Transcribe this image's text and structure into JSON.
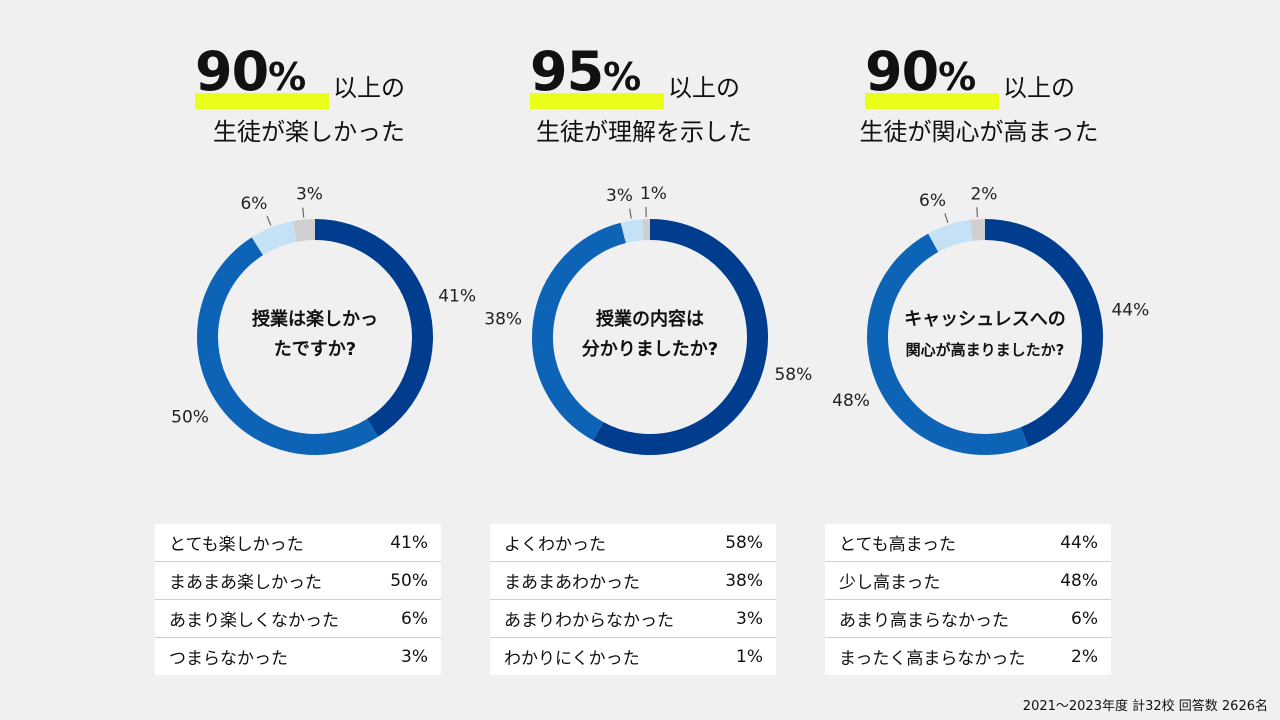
{
  "colors": {
    "c1": "#003d8f",
    "c2": "#0d63b6",
    "c3": "#c5e1f6",
    "c4": "#cfcfcf",
    "marker": "#eaff1a",
    "background": "#f0f0f0"
  },
  "footer": "2021～2023年度 計32校 回答数 2626名",
  "chart_data": [
    {
      "type": "pie",
      "headline": {
        "value": "90",
        "unit": "%",
        "suffix": "以上の",
        "line2": "生徒が楽しかった"
      },
      "center_lines": [
        "授業は楽しかっ",
        "たですか?"
      ],
      "categories": [
        "とても楽しかった",
        "まあまあ楽しかった",
        "あまり楽しくなかった",
        "つまらなかった"
      ],
      "values": [
        41,
        50,
        6,
        3
      ],
      "labels": [
        "41%",
        "50%",
        "6%",
        "3%"
      ]
    },
    {
      "type": "pie",
      "headline": {
        "value": "95",
        "unit": "%",
        "suffix": "以上の",
        "line2": "生徒が理解を示した"
      },
      "center_lines": [
        "授業の内容は",
        "分かりましたか?"
      ],
      "categories": [
        "よくわかった",
        "まあまあわかった",
        "あまりわからなかった",
        "わかりにくかった"
      ],
      "values": [
        58,
        38,
        3,
        1
      ],
      "labels": [
        "58%",
        "38%",
        "3%",
        "1%"
      ]
    },
    {
      "type": "pie",
      "headline": {
        "value": "90",
        "unit": "%",
        "suffix": "以上の",
        "line2": "生徒が関心が高まった"
      },
      "center_lines": [
        "キャッシュレスへの",
        "関心が高まりましたか?"
      ],
      "categories": [
        "とても高まった",
        "少し高まった",
        "あまり高まらなかった",
        "まったく高まらなかった"
      ],
      "values": [
        44,
        48,
        6,
        2
      ],
      "labels": [
        "44%",
        "48%",
        "6%",
        "2%"
      ]
    }
  ]
}
